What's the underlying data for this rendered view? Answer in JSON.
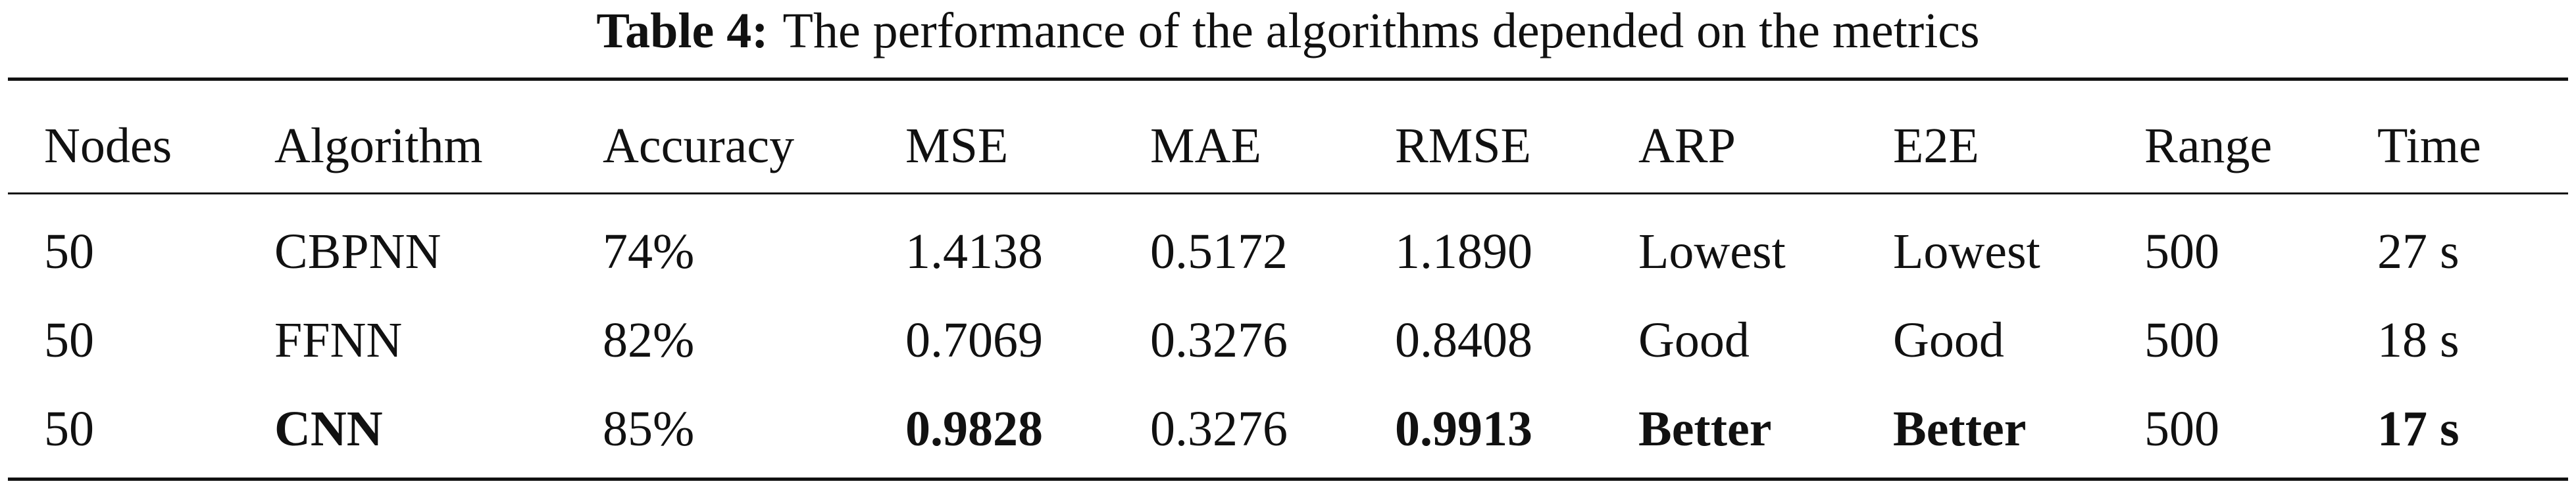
{
  "caption": {
    "label": "Table 4:",
    "text": "The performance of the algorithms depended on the metrics"
  },
  "table": {
    "header": [
      "Nodes",
      "Algorithm",
      "Accuracy",
      "MSE",
      "MAE",
      "RMSE",
      "ARP",
      "E2E",
      "Range",
      "Time"
    ],
    "rows": [
      [
        "50",
        "CBPNN",
        "74%",
        "1.4138",
        "0.5172",
        "1.1890",
        "Lowest",
        "Lowest",
        "500",
        "27 s"
      ],
      [
        "50",
        "FFNN",
        "82%",
        "0.7069",
        "0.3276",
        "0.8408",
        "Good",
        "Good",
        "500",
        "18 s"
      ],
      [
        "50",
        "CNN",
        "85%",
        "0.9828",
        "0.3276",
        "0.9913",
        "Better",
        "Better",
        "500",
        "17 s"
      ]
    ]
  }
}
